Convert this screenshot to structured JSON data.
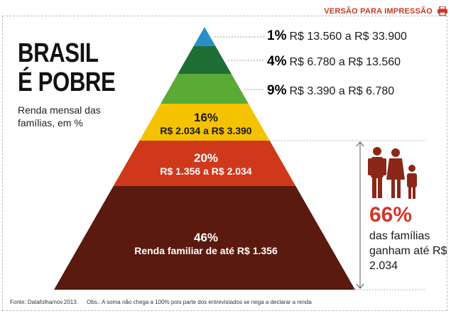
{
  "header": {
    "print_label": "VERSÃO PARA IMPRESSÃO",
    "print_icon": "printer-icon"
  },
  "title_lines": [
    "BRASIL",
    "É POBRE"
  ],
  "subtitle": "Renda mensal das famílias, em %",
  "chart_data": {
    "type": "pyramid",
    "title": "BRASIL É POBRE",
    "subtitle": "Renda mensal das famílias, em %",
    "tiers": [
      {
        "pct_label": "1%",
        "value": 1,
        "range": "R$ 13.560 a R$ 33.900",
        "color": "#2a8fc8"
      },
      {
        "pct_label": "4%",
        "value": 4,
        "range": "R$ 6.780 a R$ 13.560",
        "color": "#1f6e35"
      },
      {
        "pct_label": "9%",
        "value": 9,
        "range": "R$ 3.390 a R$ 6.780",
        "color": "#5aab35"
      },
      {
        "pct_label": "16%",
        "value": 16,
        "range": "R$ 2.034 a R$ 3.390",
        "color": "#f4c200"
      },
      {
        "pct_label": "20%",
        "value": 20,
        "range": "R$ 1.356 a R$ 2.034",
        "color": "#d0381c"
      },
      {
        "pct_label": "46%",
        "value": 46,
        "range": "Renda familiar de até R$ 1.356",
        "color": "#5a1a0f"
      }
    ]
  },
  "highlight": {
    "pct": "66%",
    "text": "das famílias ganham até R$ 2.034",
    "color": "#d0382a",
    "icon": "family-icon"
  },
  "footer": {
    "source": "Fonte: Datafolha/nov.2013.",
    "note": "Obs.: A soma não chega a 100% pois parte dos entrevistados se nega a declarar a renda"
  }
}
